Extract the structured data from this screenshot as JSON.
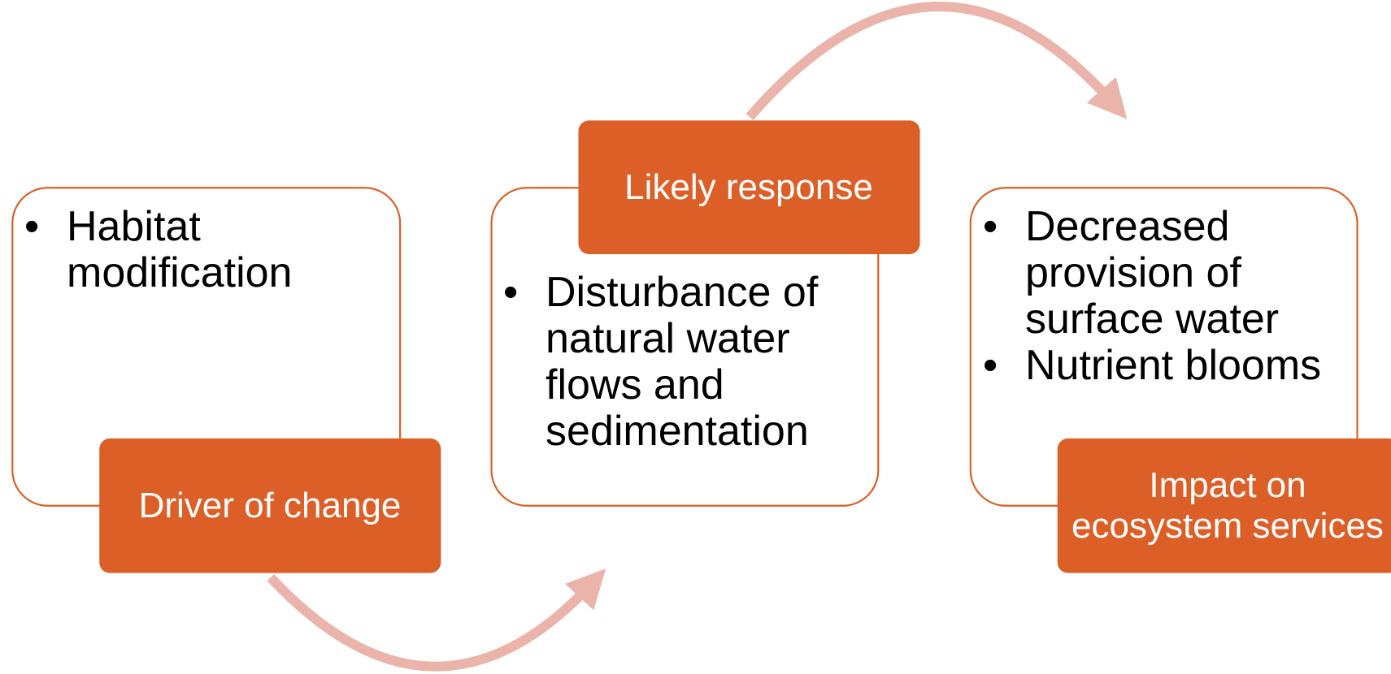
{
  "nodes": [
    {
      "label": "Driver of change",
      "items": [
        "Habitat modification"
      ]
    },
    {
      "label": "Likely response",
      "items": [
        "Disturbance of natural water flows and sedimentation"
      ]
    },
    {
      "label": "Impact on ecosystem services",
      "items": [
        "Decreased provision of surface water",
        "Nutrient blooms"
      ]
    }
  ]
}
